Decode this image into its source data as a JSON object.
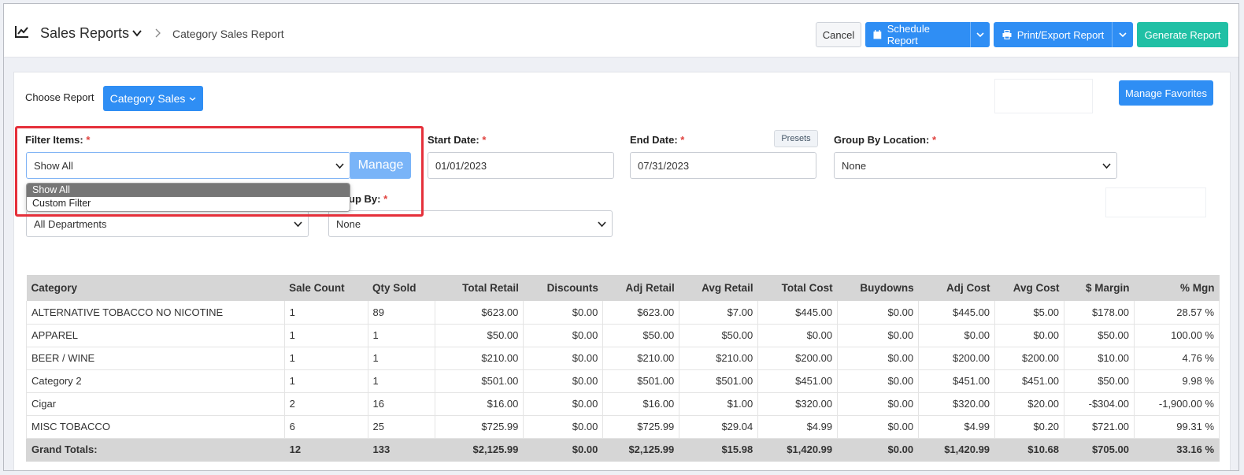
{
  "header": {
    "title": "Sales Reports",
    "breadcrumb": "Category Sales Report",
    "cancel_label": "Cancel",
    "schedule_label": "Schedule Report",
    "print_label": "Print/Export Report",
    "generate_label": "Generate Report"
  },
  "choose": {
    "label": "Choose Report",
    "selected": "Category Sales"
  },
  "favorites_label": "Manage Favorites",
  "filters": {
    "filter_items_label": "Filter Items:",
    "filter_items_value": "Show All",
    "manage_label": "Manage",
    "options": [
      "Show All",
      "Custom Filter"
    ],
    "start_label": "Start Date:",
    "start_value": "01/01/2023",
    "end_label": "End Date:",
    "end_value": "07/31/2023",
    "presets_label": "Presets",
    "group_loc_label": "Group By Location:",
    "group_loc_value": "None",
    "group_by_label": "up By:",
    "group_by_value": "None",
    "department_value": "All Departments",
    "required_mark": "*"
  },
  "colors": {
    "primary": "#2f8ef4",
    "teal": "#20c0a5",
    "highlight": "#e5303a"
  },
  "table": {
    "columns": [
      "Category",
      "Sale Count",
      "Qty Sold",
      "Total Retail",
      "Discounts",
      "Adj Retail",
      "Avg Retail",
      "Total Cost",
      "Buydowns",
      "Adj Cost",
      "Avg Cost",
      "$ Margin",
      "% Mgn"
    ],
    "rows": [
      [
        "ALTERNATIVE TOBACCO NO NICOTINE",
        "1",
        "89",
        "$623.00",
        "$0.00",
        "$623.00",
        "$7.00",
        "$445.00",
        "$0.00",
        "$445.00",
        "$5.00",
        "$178.00",
        "28.57 %"
      ],
      [
        "APPAREL",
        "1",
        "1",
        "$50.00",
        "$0.00",
        "$50.00",
        "$50.00",
        "$0.00",
        "$0.00",
        "$0.00",
        "$0.00",
        "$50.00",
        "100.00 %"
      ],
      [
        "BEER / WINE",
        "1",
        "1",
        "$210.00",
        "$0.00",
        "$210.00",
        "$210.00",
        "$200.00",
        "$0.00",
        "$200.00",
        "$200.00",
        "$10.00",
        "4.76 %"
      ],
      [
        "Category 2",
        "1",
        "1",
        "$501.00",
        "$0.00",
        "$501.00",
        "$501.00",
        "$451.00",
        "$0.00",
        "$451.00",
        "$451.00",
        "$50.00",
        "9.98 %"
      ],
      [
        "Cigar",
        "2",
        "16",
        "$16.00",
        "$0.00",
        "$16.00",
        "$1.00",
        "$320.00",
        "$0.00",
        "$320.00",
        "$20.00",
        "-$304.00",
        "-1,900.00 %"
      ],
      [
        "MISC TOBACCO",
        "6",
        "25",
        "$725.99",
        "$0.00",
        "$725.99",
        "$29.04",
        "$4.99",
        "$0.00",
        "$4.99",
        "$0.20",
        "$721.00",
        "99.31 %"
      ]
    ],
    "totals": [
      "Grand Totals:",
      "12",
      "133",
      "$2,125.99",
      "$0.00",
      "$2,125.99",
      "$15.98",
      "$1,420.99",
      "$0.00",
      "$1,420.99",
      "$10.68",
      "$705.00",
      "33.16 %"
    ]
  }
}
